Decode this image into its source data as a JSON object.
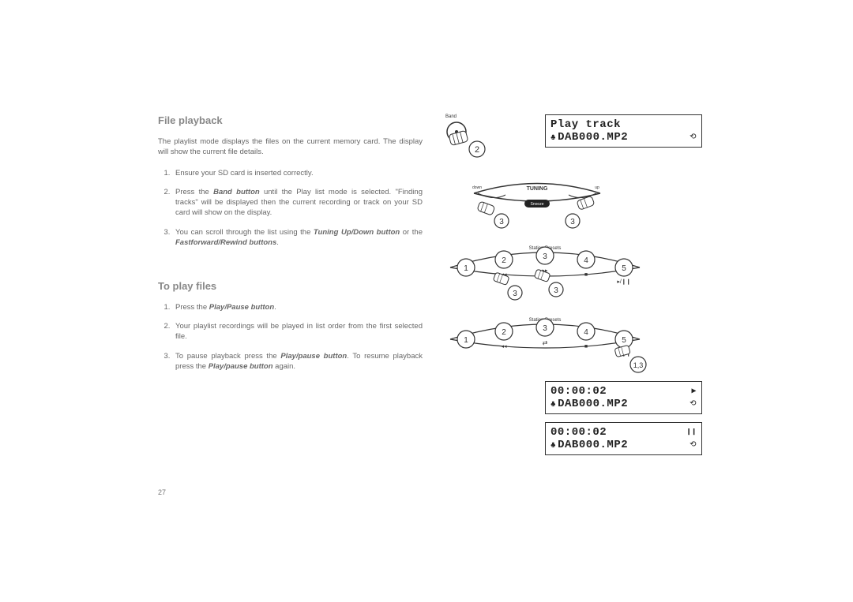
{
  "section1": {
    "heading": "File playback",
    "intro": "The playlist mode displays the files on the current memory card. The display will show the current file details.",
    "steps": [
      "Ensure your SD card is inserted correctly.",
      "Press the <b>Band button</b> until the Play list mode is selected. \"Finding tracks\" will be displayed then the current recording or track on your SD card will show on the display.",
      "You can scroll through the list using the <b>Tuning Up/Down button</b> or the <b>Fastforward/Rewind buttons</b>."
    ]
  },
  "section2": {
    "heading": "To play files",
    "steps": [
      "Press the <b>Play/Pause button</b>.",
      "Your playlist recordings will be played in list order from the first selected file.",
      "To pause playback press the <b>Play/pause button</b>. To resume playback press the <b>Play/pause button</b> again."
    ]
  },
  "page_number": "27",
  "lcd1": {
    "line1": "Play track",
    "line2": "DAB000.MP2"
  },
  "lcd2": {
    "line1": "00:00:02",
    "line2": "DAB000.MP2"
  },
  "lcd3": {
    "line1": "00:00:02",
    "line2": "DAB000.MP2"
  },
  "labels": {
    "band": "Band",
    "tuning": "TUNING",
    "snooze": "Snooze",
    "down": "down",
    "up": "up",
    "presets": "Station Presets",
    "step2": "2",
    "step3": "3",
    "step13": "1,3",
    "n1": "1",
    "n2": "2",
    "n3": "3",
    "n4": "4",
    "n5": "5"
  }
}
